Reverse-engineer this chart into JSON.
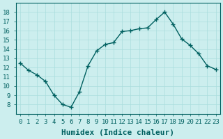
{
  "x": [
    0,
    1,
    2,
    3,
    4,
    5,
    6,
    7,
    8,
    9,
    10,
    11,
    12,
    13,
    14,
    15,
    16,
    17,
    18,
    19,
    20,
    21,
    22,
    23
  ],
  "y": [
    12.5,
    11.7,
    11.2,
    10.5,
    9.0,
    8.0,
    7.7,
    9.4,
    12.2,
    13.8,
    14.5,
    14.7,
    15.9,
    16.0,
    16.2,
    16.3,
    17.2,
    18.0,
    16.7,
    15.1,
    14.4,
    13.5,
    12.2,
    11.8
  ],
  "xlabel": "Humidex (Indice chaleur)",
  "ylim": [
    7,
    19
  ],
  "xlim": [
    -0.5,
    23.5
  ],
  "yticks": [
    8,
    9,
    10,
    11,
    12,
    13,
    14,
    15,
    16,
    17,
    18
  ],
  "xticks": [
    0,
    1,
    2,
    3,
    4,
    5,
    6,
    7,
    8,
    9,
    10,
    11,
    12,
    13,
    14,
    15,
    16,
    17,
    18,
    19,
    20,
    21,
    22,
    23
  ],
  "line_color": "#006060",
  "marker_color": "#006060",
  "bg_color": "#cceeee",
  "grid_color": "#aadddd",
  "xlabel_color": "#006060",
  "tick_color": "#006060",
  "xlabel_fontsize": 8,
  "tick_fontsize": 6.5
}
